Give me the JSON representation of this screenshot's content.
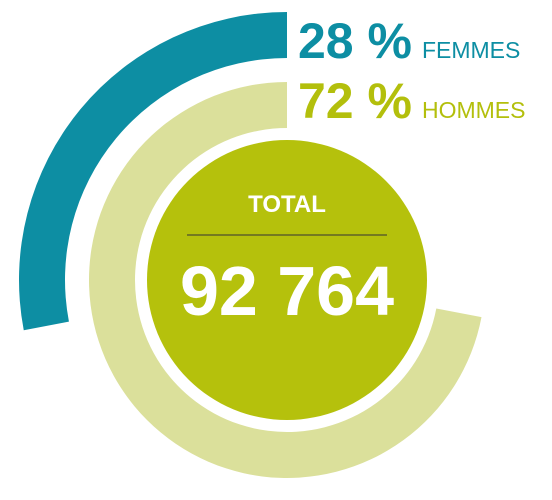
{
  "chart_data": {
    "type": "radial_bar",
    "categories": [
      "FEMMES",
      "HOMMES"
    ],
    "values": [
      28,
      72
    ],
    "value_labels": [
      "28 %",
      "72 %"
    ],
    "colors": [
      "#0d8ea3",
      "#dbe09b"
    ],
    "label_colors": [
      "#0d8ea3",
      "#b3bf0c"
    ],
    "ylim": [
      0,
      100
    ],
    "total_title": "TOTAL",
    "total": 92764,
    "total_label": "92 764",
    "center_color": "#b5c10c"
  }
}
